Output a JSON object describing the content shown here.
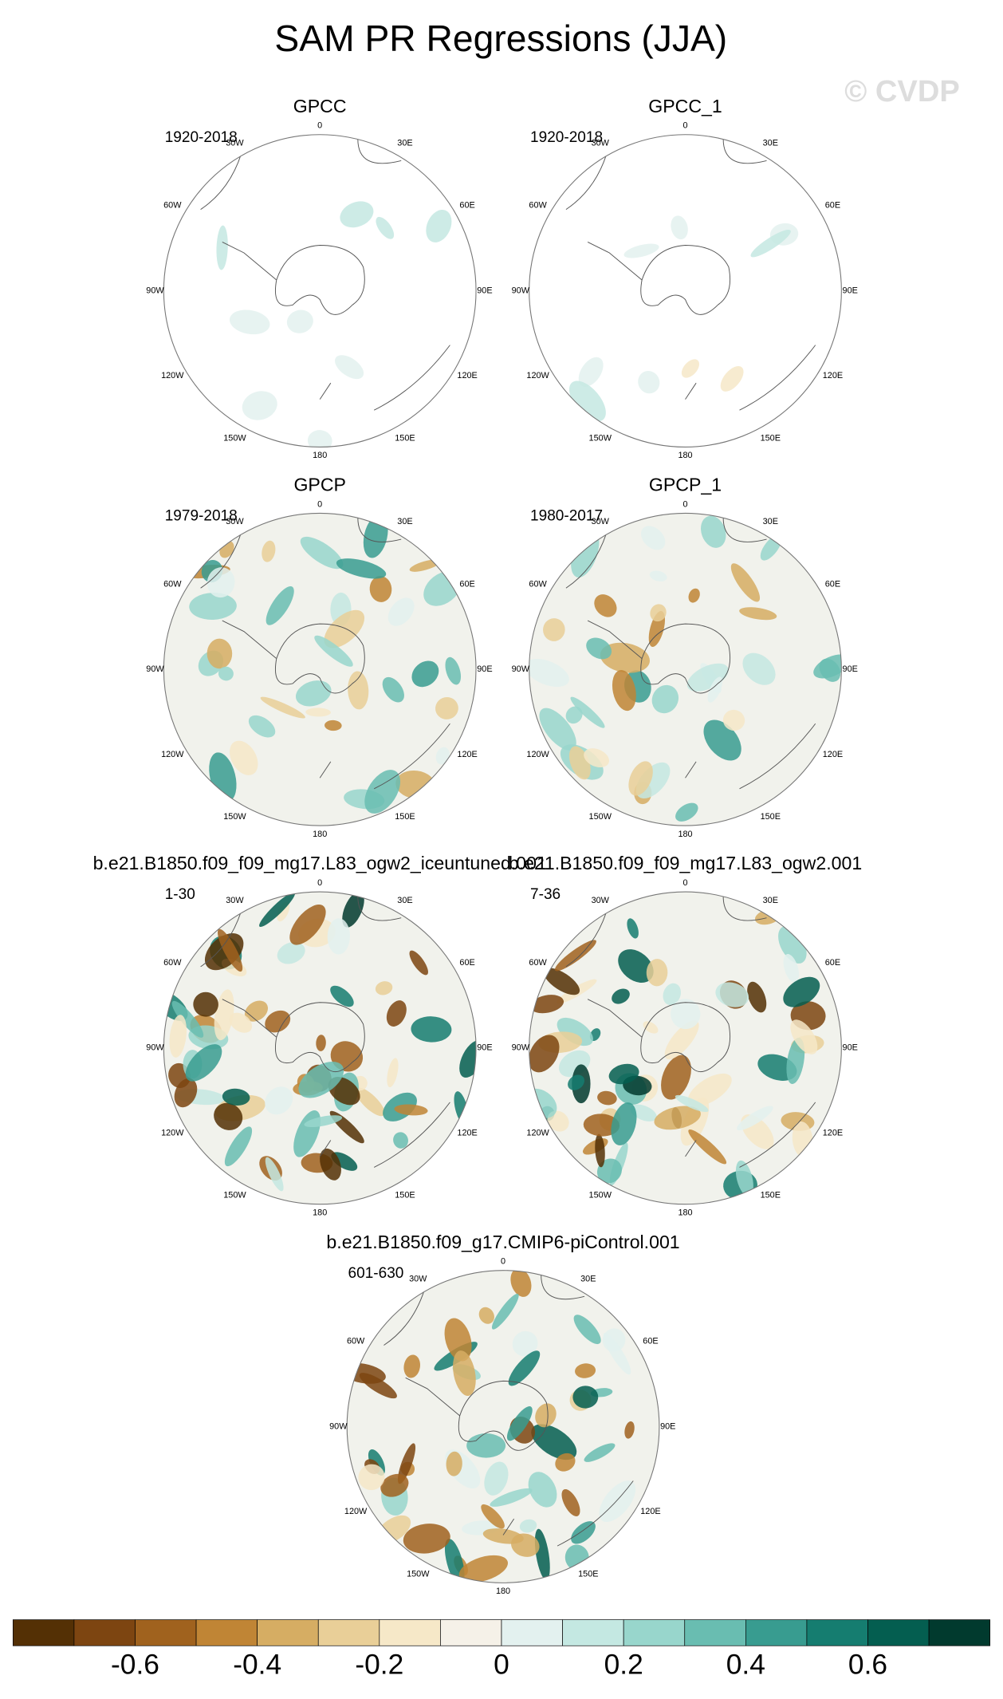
{
  "title": "SAM PR Regressions (JJA)",
  "watermark": "© CVDP",
  "lon_labels": [
    "0",
    "30E",
    "60E",
    "90E",
    "120E",
    "150E",
    "180",
    "150W",
    "120W",
    "90W",
    "60W",
    "30W"
  ],
  "panels": [
    {
      "name": "GPCC",
      "years": "1920-2018"
    },
    {
      "name": "GPCC_1",
      "years": "1920-2018"
    },
    {
      "name": "GPCP",
      "years": "1979-2018"
    },
    {
      "name": "GPCP_1",
      "years": "1980-2017"
    },
    {
      "name": "b.e21.B1850.f09_f09_mg17.L83_ogw2_iceuntuned.001",
      "years": "1-30"
    },
    {
      "name": "b.e21.B1850.f09_f09_mg17.L83_ogw2.001",
      "years": "7-36"
    },
    {
      "name": "b.e21.B1850.f09_g17.CMIP6-piControl.001",
      "years": "601-630"
    }
  ],
  "colorbar": {
    "colors": [
      "#543005",
      "#7d4511",
      "#a0621e",
      "#c08535",
      "#d6ad63",
      "#e9cf98",
      "#f6e8c8",
      "#f5f1e8",
      "#e3f1ef",
      "#c4e8e2",
      "#98d6cc",
      "#69bdb1",
      "#389c90",
      "#157d70",
      "#045e50",
      "#013a2e"
    ],
    "lim": [
      -0.8,
      0.8
    ],
    "ticks": [
      -0.6,
      -0.4,
      -0.2,
      0,
      0.2,
      0.4,
      0.6
    ]
  }
}
